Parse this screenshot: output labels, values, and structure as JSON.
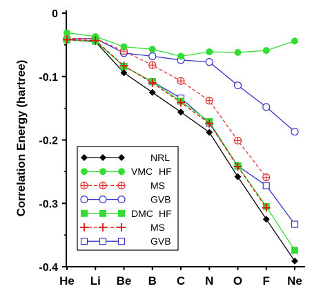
{
  "chart_data": {
    "type": "line",
    "title": "",
    "xlabel": "",
    "ylabel": "Correlation Energy (hartree)",
    "categories": [
      "He",
      "Li",
      "Be",
      "B",
      "C",
      "N",
      "O",
      "F",
      "Ne"
    ],
    "ylim": [
      -0.4,
      0
    ],
    "yticks": [
      0,
      -0.1,
      -0.2,
      -0.3,
      -0.4
    ],
    "ytick_labels": [
      "0",
      "-0.1",
      "-0.2",
      "-0.3",
      "-0.4"
    ],
    "grid": false,
    "legend_position": "bottom-left",
    "series": [
      {
        "legend_method": "",
        "legend_name": "NRL",
        "color": "#000000",
        "marker": "diamond-filled",
        "line": "solid",
        "values": [
          -0.042,
          -0.045,
          -0.094,
          -0.125,
          -0.156,
          -0.188,
          -0.258,
          -0.325,
          -0.391
        ]
      },
      {
        "legend_method": "VMC",
        "legend_name": "HF",
        "color": "#33dd33",
        "marker": "circle-filled",
        "line": "solid",
        "values": [
          -0.031,
          -0.037,
          -0.053,
          -0.057,
          -0.068,
          -0.061,
          -0.062,
          -0.059,
          -0.044
        ]
      },
      {
        "legend_method": "",
        "legend_name": "MS",
        "color": "#dd3333",
        "marker": "circle-plus",
        "line": "dashed",
        "values": [
          -0.04,
          -0.04,
          -0.06,
          -0.082,
          -0.107,
          -0.138,
          -0.201,
          -0.259,
          null
        ]
      },
      {
        "legend_method": "",
        "legend_name": "GVB",
        "color": "#3333cc",
        "marker": "circle-open",
        "line": "solid",
        "values": [
          -0.041,
          -0.04,
          -0.063,
          -0.068,
          -0.074,
          -0.077,
          -0.114,
          -0.148,
          -0.187
        ]
      },
      {
        "legend_method": "DMC",
        "legend_name": "HF",
        "color": "#33dd33",
        "marker": "square-filled",
        "line": "solid",
        "values": [
          -0.042,
          -0.044,
          -0.084,
          -0.108,
          -0.139,
          -0.171,
          -0.241,
          -0.305,
          -0.374
        ]
      },
      {
        "legend_method": "",
        "legend_name": "MS",
        "color": "#dd1111",
        "marker": "plus",
        "line": "dashed",
        "values": [
          -0.042,
          -0.043,
          -0.083,
          -0.11,
          -0.141,
          -0.174,
          -0.242,
          -0.307,
          null
        ]
      },
      {
        "legend_method": "",
        "legend_name": "GVB",
        "color": "#3333cc",
        "marker": "square-open",
        "line": "solid",
        "values": [
          -0.042,
          -0.044,
          -0.084,
          -0.108,
          -0.134,
          -0.173,
          -0.241,
          -0.272,
          -0.333
        ]
      }
    ]
  }
}
